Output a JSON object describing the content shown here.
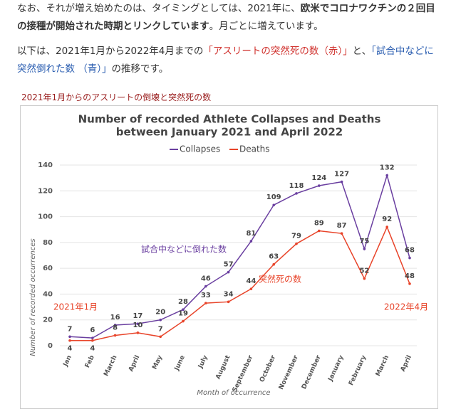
{
  "paragraphs": [
    [
      "なお、それが増え始めたのは、タイミングとしては、2021年に、",
      "欧米でコロナワクチンの２回目の接種が開始された時期とリンクしています",
      "。月ごとに増えています。"
    ],
    [
      "以下は、2021年1月から2022年4月までの",
      "「アスリートの突然死の数（赤）」",
      "と、",
      "「試合中などに突然倒れた数 （青）」",
      "の推移です。"
    ]
  ],
  "caption": "2021年1月からのアスリートの倒壊と突然死の数",
  "chart_data": {
    "type": "line",
    "title": [
      "Number of recorded Athlete Collapses and Deaths",
      "between January 2021 and April 2022"
    ],
    "x_label": "Month of occurrence",
    "y_label": "Number of recorded occurrences",
    "categories": [
      "Jan",
      "Feb",
      "March",
      "April",
      "May",
      "June",
      "July",
      "August",
      "September",
      "October",
      "November",
      "December",
      "January",
      "February",
      "March",
      "April"
    ],
    "series": [
      {
        "name": "Collapses",
        "color": "#6a3fa0",
        "values": [
          7,
          6,
          16,
          17,
          20,
          28,
          46,
          57,
          81,
          109,
          118,
          124,
          127,
          75,
          132,
          68
        ]
      },
      {
        "name": "Deaths",
        "color": "#e8442a",
        "values": [
          4,
          4,
          8,
          10,
          7,
          19,
          33,
          34,
          44,
          63,
          79,
          89,
          87,
          52,
          92,
          48
        ]
      }
    ],
    "ylim": [
      0,
      140
    ],
    "yticks": [
      0,
      20,
      40,
      60,
      80,
      100,
      120,
      140
    ],
    "grid": true,
    "legend": "top",
    "annotations": [
      "試合中などに倒れた数",
      "突然死の数",
      "2021年1月",
      "2022年4月"
    ]
  }
}
